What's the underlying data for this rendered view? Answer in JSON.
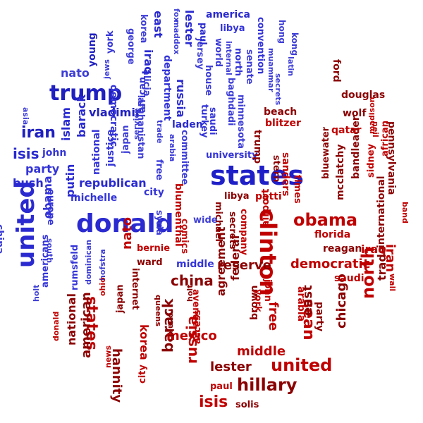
{
  "colors": {
    "blue_dark": "#1a1ab8",
    "blue": "#3d3dd6",
    "blue_light": "#5a5ae0",
    "red_dark": "#8b0000",
    "red": "#c00000",
    "red_light": "#e01010"
  },
  "words": [
    {
      "text": "states",
      "weight": 10,
      "group": "blue"
    },
    {
      "text": "donald",
      "weight": 9,
      "group": "blue"
    },
    {
      "text": "trump",
      "weight": 8,
      "group": "blue"
    },
    {
      "text": "united",
      "weight": 9,
      "group": "blue"
    },
    {
      "text": "iran",
      "weight": 5,
      "group": "blue"
    },
    {
      "text": "isis",
      "weight": 5,
      "group": "blue"
    },
    {
      "text": "party",
      "weight": 3,
      "group": "blue"
    },
    {
      "text": "john",
      "weight": 3,
      "group": "blue"
    },
    {
      "text": "bush",
      "weight": 3,
      "group": "blue"
    },
    {
      "text": "obama",
      "weight": 4,
      "group": "blue"
    },
    {
      "text": "china",
      "weight": 3,
      "group": "blue"
    },
    {
      "text": "asia",
      "weight": 2,
      "group": "blue"
    },
    {
      "text": "islam",
      "weight": 4,
      "group": "blue"
    },
    {
      "text": "barack",
      "weight": 4,
      "group": "blue"
    },
    {
      "text": "vladimir",
      "weight": 4,
      "group": "blue"
    },
    {
      "text": "putin",
      "weight": 4,
      "group": "blue"
    },
    {
      "text": "national",
      "weight": 3,
      "group": "blue"
    },
    {
      "text": "justice",
      "weight": 3,
      "group": "blue"
    },
    {
      "text": "japan",
      "weight": 3,
      "group": "blue"
    },
    {
      "text": "republican",
      "weight": 3,
      "group": "blue"
    },
    {
      "text": "michelle",
      "weight": 3,
      "group": "blue"
    },
    {
      "text": "nato",
      "weight": 4,
      "group": "blue"
    },
    {
      "text": "young",
      "weight": 3,
      "group": "blue"
    },
    {
      "text": "jews",
      "weight": 2,
      "group": "blue"
    },
    {
      "text": "york",
      "weight": 3,
      "group": "blue"
    },
    {
      "text": "democratic",
      "weight": 3,
      "group": "blue"
    },
    {
      "text": "george",
      "weight": 3,
      "group": "blue"
    },
    {
      "text": "african",
      "weight": 3,
      "group": "blue"
    },
    {
      "text": "korea",
      "weight": 3,
      "group": "blue"
    },
    {
      "text": "alicia",
      "weight": 3,
      "group": "blue"
    },
    {
      "text": "iraq",
      "weight": 4,
      "group": "blue"
    },
    {
      "text": "afghanistan",
      "weight": 3,
      "group": "blue"
    },
    {
      "text": "department",
      "weight": 3,
      "group": "blue"
    },
    {
      "text": "east",
      "weight": 3,
      "group": "blue"
    },
    {
      "text": "maddox",
      "weight": 2,
      "group": "blue"
    },
    {
      "text": "fox",
      "weight": 2,
      "group": "blue"
    },
    {
      "text": "lester",
      "weight": 4,
      "group": "blue"
    },
    {
      "text": "jersey",
      "weight": 3,
      "group": "blue"
    },
    {
      "text": "russia",
      "weight": 4,
      "group": "blue"
    },
    {
      "text": "trade",
      "weight": 2,
      "group": "blue"
    },
    {
      "text": "laden",
      "weight": 3,
      "group": "blue"
    },
    {
      "text": "service",
      "weight": 2,
      "group": "blue"
    },
    {
      "text": "arabia",
      "weight": 2,
      "group": "blue"
    },
    {
      "text": "free",
      "weight": 3,
      "group": "blue"
    },
    {
      "text": "america",
      "weight": 3,
      "group": "blue"
    },
    {
      "text": "paul",
      "weight": 3,
      "group": "blue"
    },
    {
      "text": "libya",
      "weight": 3,
      "group": "blue"
    },
    {
      "text": "house",
      "weight": 3,
      "group": "blue"
    },
    {
      "text": "world",
      "weight": 3,
      "group": "blue"
    },
    {
      "text": "internal",
      "weight": 2,
      "group": "blue"
    },
    {
      "text": "north",
      "weight": 3,
      "group": "blue"
    },
    {
      "text": "senate",
      "weight": 3,
      "group": "blue"
    },
    {
      "text": "convention",
      "weight": 3,
      "group": "blue"
    },
    {
      "text": "hong",
      "weight": 3,
      "group": "blue"
    },
    {
      "text": "kong",
      "weight": 3,
      "group": "blue"
    },
    {
      "text": "latin",
      "weight": 2,
      "group": "blue"
    },
    {
      "text": "muammar",
      "weight": 2,
      "group": "blue"
    },
    {
      "text": "secrets",
      "weight": 2,
      "group": "blue"
    },
    {
      "text": "saudi",
      "weight": 3,
      "group": "blue"
    },
    {
      "text": "turkey",
      "weight": 3,
      "group": "blue"
    },
    {
      "text": "baghdadi",
      "weight": 3,
      "group": "blue"
    },
    {
      "text": "committee",
      "weight": 3,
      "group": "blue"
    },
    {
      "text": "university",
      "weight": 3,
      "group": "blue"
    },
    {
      "text": "minnesota",
      "weight": 3,
      "group": "blue"
    },
    {
      "text": "city",
      "weight": 3,
      "group": "blue"
    },
    {
      "text": "wide",
      "weight": 3,
      "group": "blue"
    },
    {
      "text": "syria",
      "weight": 3,
      "group": "blue"
    },
    {
      "text": "comics",
      "weight": 3,
      "group": "red"
    },
    {
      "text": "europe",
      "weight": 3,
      "group": "blue"
    },
    {
      "text": "south",
      "weight": 2,
      "group": "blue"
    },
    {
      "text": "americans",
      "weight": 3,
      "group": "blue"
    },
    {
      "text": "rumsfeld",
      "weight": 3,
      "group": "blue"
    },
    {
      "text": "dominican",
      "weight": 2,
      "group": "blue"
    },
    {
      "text": "hofstra",
      "weight": 2,
      "group": "blue"
    },
    {
      "text": "holt",
      "weight": 2,
      "group": "blue"
    },
    {
      "text": "middle",
      "weight": 3,
      "group": "blue"
    },
    {
      "text": "clinton",
      "weight": 9,
      "group": "red"
    },
    {
      "text": "obama",
      "weight": 6,
      "group": "red"
    },
    {
      "text": "hillary",
      "weight": 6,
      "group": "red"
    },
    {
      "text": "united",
      "weight": 6,
      "group": "red"
    },
    {
      "text": "north",
      "weight": 5,
      "group": "red"
    },
    {
      "text": "sean",
      "weight": 5,
      "group": "red"
    },
    {
      "text": "china",
      "weight": 5,
      "group": "red"
    },
    {
      "text": "states",
      "weight": 6,
      "group": "red"
    },
    {
      "text": "barack",
      "weight": 5,
      "group": "red"
    },
    {
      "text": "russia",
      "weight": 5,
      "group": "red"
    },
    {
      "text": "isis",
      "weight": 5,
      "group": "red"
    },
    {
      "text": "lester",
      "weight": 4,
      "group": "red"
    },
    {
      "text": "middle",
      "weight": 4,
      "group": "red"
    },
    {
      "text": "reserve",
      "weight": 4,
      "group": "red"
    },
    {
      "text": "democratic",
      "weight": 4,
      "group": "red"
    },
    {
      "text": "chicago",
      "weight": 4,
      "group": "red"
    },
    {
      "text": "hannity",
      "weight": 4,
      "group": "red"
    },
    {
      "text": "american",
      "weight": 4,
      "group": "red"
    },
    {
      "text": "national",
      "weight": 3,
      "group": "red"
    },
    {
      "text": "korea",
      "weight": 3,
      "group": "red"
    },
    {
      "text": "mexico",
      "weight": 4,
      "group": "red"
    },
    {
      "text": "agreement",
      "weight": 4,
      "group": "red"
    },
    {
      "text": "federal",
      "weight": 4,
      "group": "red"
    },
    {
      "text": "free",
      "weight": 4,
      "group": "red"
    },
    {
      "text": "brown",
      "weight": 3,
      "group": "red"
    },
    {
      "text": "york",
      "weight": 3,
      "group": "red"
    },
    {
      "text": "john",
      "weight": 3,
      "group": "red"
    },
    {
      "text": "east",
      "weight": 4,
      "group": "red"
    },
    {
      "text": "arabia",
      "weight": 3,
      "group": "red"
    },
    {
      "text": "party",
      "weight": 3,
      "group": "red"
    },
    {
      "text": "saudi",
      "weight": 3,
      "group": "red"
    },
    {
      "text": "trade",
      "weight": 3,
      "group": "red"
    },
    {
      "text": "iraq",
      "weight": 3,
      "group": "red"
    },
    {
      "text": "reagan",
      "weight": 3,
      "group": "red"
    },
    {
      "text": "florida",
      "weight": 3,
      "group": "red"
    },
    {
      "text": "international",
      "weight": 3,
      "group": "red"
    },
    {
      "text": "iran",
      "weight": 4,
      "group": "red"
    },
    {
      "text": "wall",
      "weight": 2,
      "group": "red"
    },
    {
      "text": "band",
      "weight": 2,
      "group": "red"
    },
    {
      "text": "pennsylvania",
      "weight": 3,
      "group": "red"
    },
    {
      "text": "sidney",
      "weight": 3,
      "group": "red"
    },
    {
      "text": "african",
      "weight": 3,
      "group": "red"
    },
    {
      "text": "bandleader",
      "weight": 3,
      "group": "red"
    },
    {
      "text": "mcclatchy",
      "weight": 3,
      "group": "red"
    },
    {
      "text": "bluewater",
      "weight": 3,
      "group": "red"
    },
    {
      "text": "qatar",
      "weight": 3,
      "group": "red"
    },
    {
      "text": "wolf",
      "weight": 3,
      "group": "red"
    },
    {
      "text": "neil",
      "weight": 2,
      "group": "red"
    },
    {
      "text": "madison",
      "weight": 2,
      "group": "red"
    },
    {
      "text": "douglas",
      "weight": 3,
      "group": "red"
    },
    {
      "text": "ford",
      "weight": 3,
      "group": "red"
    },
    {
      "text": "beach",
      "weight": 3,
      "group": "red"
    },
    {
      "text": "blitzer",
      "weight": 3,
      "group": "red"
    },
    {
      "text": "trump",
      "weight": 3,
      "group": "red"
    },
    {
      "text": "stern",
      "weight": 3,
      "group": "red"
    },
    {
      "text": "sanders",
      "weight": 3,
      "group": "red"
    },
    {
      "text": "times",
      "weight": 3,
      "group": "red"
    },
    {
      "text": "patti",
      "weight": 3,
      "group": "red"
    },
    {
      "text": "libya",
      "weight": 3,
      "group": "red"
    },
    {
      "text": "airport",
      "weight": 3,
      "group": "red"
    },
    {
      "text": "company",
      "weight": 3,
      "group": "red"
    },
    {
      "text": "secrets",
      "weight": 3,
      "group": "red"
    },
    {
      "text": "michael",
      "weight": 3,
      "group": "red"
    },
    {
      "text": "blumenthal",
      "weight": 3,
      "group": "red"
    },
    {
      "text": "bernie",
      "weight": 3,
      "group": "red"
    },
    {
      "text": "nato",
      "weight": 4,
      "group": "red"
    },
    {
      "text": "internet",
      "weight": 3,
      "group": "red"
    },
    {
      "text": "japan",
      "weight": 3,
      "group": "red"
    },
    {
      "text": "ohio",
      "weight": 2,
      "group": "red"
    },
    {
      "text": "ward",
      "weight": 3,
      "group": "red"
    },
    {
      "text": "queens",
      "weight": 2,
      "group": "red"
    },
    {
      "text": "ronald",
      "weight": 2,
      "group": "red"
    },
    {
      "text": "holt",
      "weight": 2,
      "group": "red"
    },
    {
      "text": "avenue",
      "weight": 3,
      "group": "red"
    },
    {
      "text": "access",
      "weight": 3,
      "group": "red"
    },
    {
      "text": "paul",
      "weight": 3,
      "group": "red"
    },
    {
      "text": "solis",
      "weight": 3,
      "group": "red"
    },
    {
      "text": "city",
      "weight": 3,
      "group": "red"
    },
    {
      "text": "news",
      "weight": 2,
      "group": "red"
    },
    {
      "text": "donald",
      "weight": 2,
      "group": "red"
    }
  ]
}
